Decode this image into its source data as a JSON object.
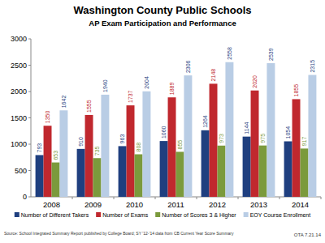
{
  "chart_data": {
    "type": "bar",
    "title": "Washington County Public Schools",
    "subtitle": "AP Exam Participation and Performance",
    "categories": [
      "2008",
      "2009",
      "2010",
      "2011",
      "2012",
      "2013",
      "2014"
    ],
    "series": [
      {
        "name": "Number of Different Takers",
        "color": "#1f3f7f",
        "values": [
          793,
          910,
          963,
          1060,
          1264,
          1144,
          1054
        ]
      },
      {
        "name": "Number of Exams",
        "color": "#c0282e",
        "values": [
          1350,
          1555,
          1737,
          1889,
          2148,
          2020,
          1855
        ]
      },
      {
        "name": "Number of Scores 3 & Higher",
        "color": "#7b9a3c",
        "values": [
          653,
          735,
          808,
          855,
          973,
          975,
          917
        ]
      },
      {
        "name": "EOY Course Enrollment",
        "color": "#b9cde5",
        "values": [
          1642,
          1940,
          2004,
          2306,
          2558,
          2539,
          2315
        ]
      }
    ],
    "ylim": [
      0,
      3000
    ],
    "yticks": [
      0,
      500,
      1000,
      1500,
      2000,
      2500,
      3000
    ],
    "grid": false,
    "legend": "bottom",
    "data_labels": true,
    "annotations": [
      "Source: School Integrated Summary Report published by College Board; SY '12-'14 data from CB Current Year Score Summary",
      "OTA 7.21.14"
    ]
  }
}
